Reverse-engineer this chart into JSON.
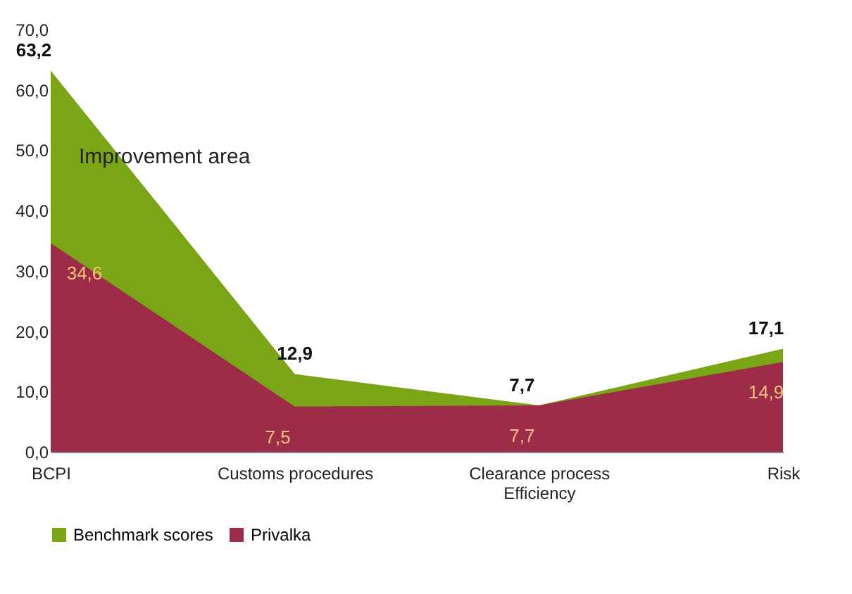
{
  "chart_data": {
    "type": "area",
    "categories": [
      "BCPI",
      "Customs procedures",
      "Clearance process Efficiency",
      "Risk"
    ],
    "series": [
      {
        "name": "Benchmark scores",
        "color": "#7aa516",
        "values": [
          63.2,
          12.9,
          7.7,
          17.1
        ],
        "value_labels": [
          "63,2",
          "12,9",
          "7,7",
          "17,1"
        ]
      },
      {
        "name": "Privalka",
        "color": "#9c2c48",
        "values": [
          34.6,
          7.5,
          7.7,
          14.9
        ],
        "value_labels": [
          "34,6",
          "7,5",
          "7,7",
          "14,9"
        ]
      }
    ],
    "ylim": [
      0,
      70
    ],
    "yticks": [
      {
        "value": 0,
        "label": "0,0"
      },
      {
        "value": 10,
        "label": "10,0"
      },
      {
        "value": 20,
        "label": "20,0"
      },
      {
        "value": 30,
        "label": "30,0"
      },
      {
        "value": 40,
        "label": "40,0"
      },
      {
        "value": 50,
        "label": "50,0"
      },
      {
        "value": 60,
        "label": "60,0"
      },
      {
        "value": 70,
        "label": "70,0"
      }
    ],
    "annotations": [
      "Improvement area"
    ],
    "grid": false,
    "legend": "bottom"
  }
}
